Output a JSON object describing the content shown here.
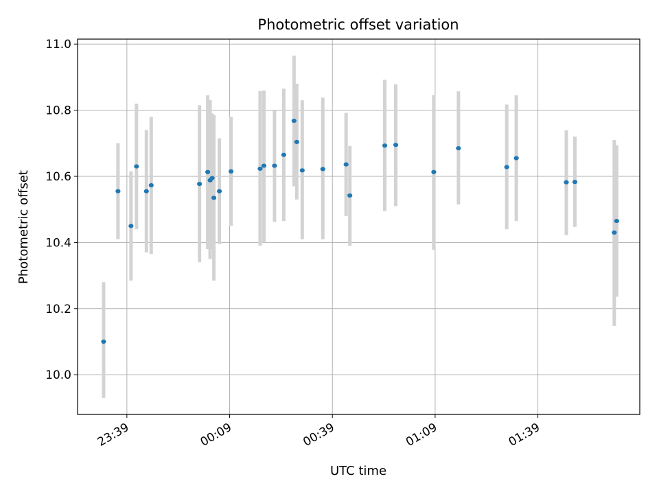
{
  "chart_data": {
    "type": "scatter",
    "title": "Photometric offset variation",
    "xlabel": "UTC time",
    "ylabel": "Photometric offset",
    "x_unit": "UTC time (HH:MM)",
    "xlim": [
      "23:24:36",
      "02:08:45"
    ],
    "ylim": [
      9.88,
      11.015
    ],
    "grid": true,
    "x_ticks": [
      "23:39",
      "00:09",
      "00:39",
      "01:09",
      "01:39"
    ],
    "y_ticks": [
      "10.0",
      "10.2",
      "10.4",
      "10.6",
      "10.8",
      "11.0"
    ],
    "marker_color": "#1f77b4",
    "errorbar_color": "#d3d3d3",
    "points": [
      {
        "x": "23:32:12",
        "y": 10.1,
        "yerr_low": 9.93,
        "yerr_high": 10.28
      },
      {
        "x": "23:36:24",
        "y": 10.555,
        "yerr_low": 10.41,
        "yerr_high": 10.7
      },
      {
        "x": "23:40:12",
        "y": 10.45,
        "yerr_low": 10.285,
        "yerr_high": 10.615
      },
      {
        "x": "23:41:48",
        "y": 10.63,
        "yerr_low": 10.44,
        "yerr_high": 10.82
      },
      {
        "x": "23:44:42",
        "y": 10.555,
        "yerr_low": 10.37,
        "yerr_high": 10.74
      },
      {
        "x": "23:46:06",
        "y": 10.573,
        "yerr_low": 10.365,
        "yerr_high": 10.78
      },
      {
        "x": "00:00:12",
        "y": 10.577,
        "yerr_low": 10.34,
        "yerr_high": 10.815
      },
      {
        "x": "00:02:36",
        "y": 10.613,
        "yerr_low": 10.38,
        "yerr_high": 10.845
      },
      {
        "x": "00:03:18",
        "y": 10.588,
        "yerr_low": 10.35,
        "yerr_high": 10.83
      },
      {
        "x": "00:03:54",
        "y": 10.595,
        "yerr_low": 10.38,
        "yerr_high": 10.79
      },
      {
        "x": "00:04:24",
        "y": 10.535,
        "yerr_low": 10.285,
        "yerr_high": 10.785
      },
      {
        "x": "00:06:00",
        "y": 10.555,
        "yerr_low": 10.395,
        "yerr_high": 10.715
      },
      {
        "x": "00:09:24",
        "y": 10.615,
        "yerr_low": 10.45,
        "yerr_high": 10.78
      },
      {
        "x": "00:17:54",
        "y": 10.623,
        "yerr_low": 10.39,
        "yerr_high": 10.858
      },
      {
        "x": "00:19:00",
        "y": 10.632,
        "yerr_low": 10.4,
        "yerr_high": 10.86
      },
      {
        "x": "00:22:06",
        "y": 10.632,
        "yerr_low": 10.462,
        "yerr_high": 10.8
      },
      {
        "x": "00:24:48",
        "y": 10.665,
        "yerr_low": 10.465,
        "yerr_high": 10.865
      },
      {
        "x": "00:27:48",
        "y": 10.768,
        "yerr_low": 10.57,
        "yerr_high": 10.965
      },
      {
        "x": "00:28:36",
        "y": 10.704,
        "yerr_low": 10.53,
        "yerr_high": 10.88
      },
      {
        "x": "00:30:12",
        "y": 10.618,
        "yerr_low": 10.41,
        "yerr_high": 10.83
      },
      {
        "x": "00:36:12",
        "y": 10.622,
        "yerr_low": 10.41,
        "yerr_high": 10.838
      },
      {
        "x": "00:43:00",
        "y": 10.636,
        "yerr_low": 10.48,
        "yerr_high": 10.792
      },
      {
        "x": "00:44:06",
        "y": 10.542,
        "yerr_low": 10.39,
        "yerr_high": 10.692
      },
      {
        "x": "00:54:18",
        "y": 10.693,
        "yerr_low": 10.495,
        "yerr_high": 10.892
      },
      {
        "x": "00:57:30",
        "y": 10.695,
        "yerr_low": 10.51,
        "yerr_high": 10.878
      },
      {
        "x": "01:08:36",
        "y": 10.613,
        "yerr_low": 10.378,
        "yerr_high": 10.846
      },
      {
        "x": "01:15:48",
        "y": 10.685,
        "yerr_low": 10.515,
        "yerr_high": 10.857
      },
      {
        "x": "01:29:54",
        "y": 10.628,
        "yerr_low": 10.44,
        "yerr_high": 10.817
      },
      {
        "x": "01:32:42",
        "y": 10.655,
        "yerr_low": 10.465,
        "yerr_high": 10.845
      },
      {
        "x": "01:47:18",
        "y": 10.582,
        "yerr_low": 10.422,
        "yerr_high": 10.739
      },
      {
        "x": "01:49:48",
        "y": 10.583,
        "yerr_low": 10.447,
        "yerr_high": 10.72
      },
      {
        "x": "02:01:18",
        "y": 10.43,
        "yerr_low": 10.148,
        "yerr_high": 10.71
      },
      {
        "x": "02:02:00",
        "y": 10.465,
        "yerr_low": 10.236,
        "yerr_high": 10.694
      }
    ]
  }
}
